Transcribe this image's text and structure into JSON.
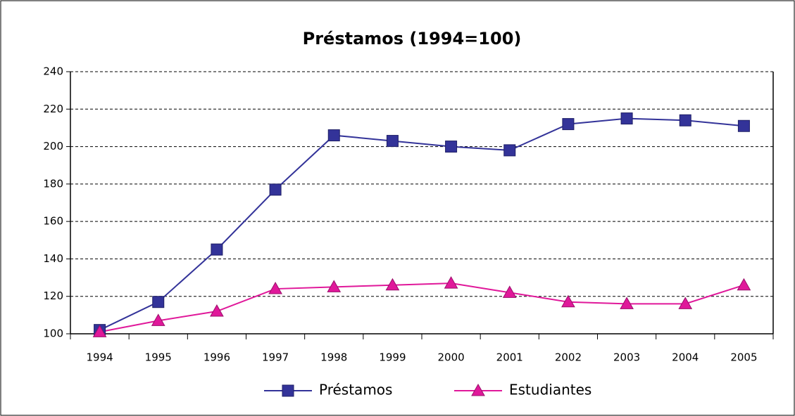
{
  "chart_data": {
    "type": "line",
    "title": "Préstamos (1994=100)",
    "categories": [
      "1994",
      "1995",
      "1996",
      "1997",
      "1998",
      "1999",
      "2000",
      "2001",
      "2002",
      "2003",
      "2004",
      "2005"
    ],
    "series": [
      {
        "name": "Préstamos",
        "color": "#333399",
        "marker": "square",
        "values": [
          102,
          117,
          145,
          177,
          206,
          203,
          200,
          198,
          212,
          215,
          214,
          211
        ]
      },
      {
        "name": "Estudiantes",
        "color": "#e0189a",
        "marker": "triangle",
        "values": [
          101,
          107,
          112,
          124,
          125,
          126,
          127,
          122,
          117,
          116,
          116,
          126
        ]
      }
    ],
    "ylim": [
      100,
      240
    ],
    "yticks": [
      100,
      120,
      140,
      160,
      180,
      200,
      220,
      240
    ],
    "grid": true,
    "legend": "bottom"
  }
}
